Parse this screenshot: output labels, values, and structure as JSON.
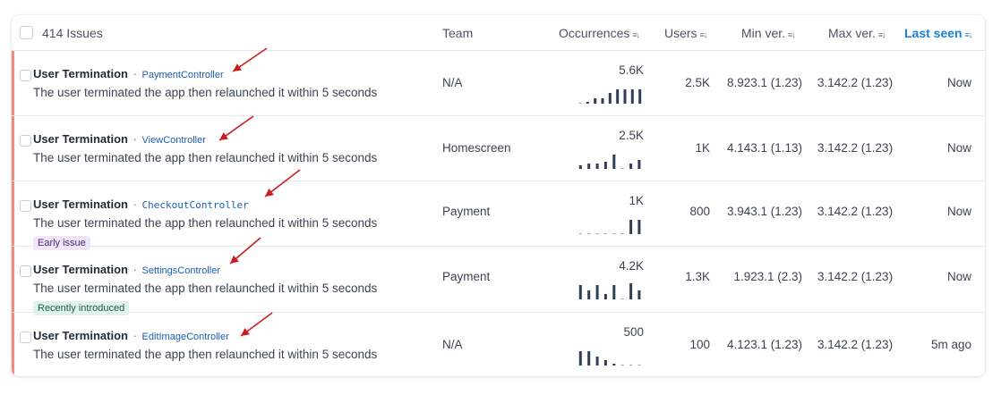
{
  "header": {
    "count_label": "414 Issues",
    "team": "Team",
    "occurrences": "Occurrences",
    "users": "Users",
    "min_ver": "Min ver.",
    "max_ver": "Max ver.",
    "last_seen": "Last seen",
    "sort_icon": "≡↓"
  },
  "colors": {
    "accent": "#1a7fd6",
    "stripe": "#ef8a78",
    "bar": "#2f3e55",
    "arrow": "#c81e1e"
  },
  "rows": [
    {
      "name": "User Termination",
      "sep": "·",
      "controller": "PaymentController",
      "desc": "The user terminated the app then relaunched it within 5 seconds",
      "tag": "",
      "team": "N/A",
      "occurrences": "5.6K",
      "users": "2.5K",
      "min_ver": "8.923.1 (1.23)",
      "max_ver": "3.142.2 (1.23)",
      "last_seen": "Now",
      "spark": [
        0,
        0.1,
        0.3,
        0.3,
        0.6,
        0.8,
        0.8,
        0.8,
        0.8
      ]
    },
    {
      "name": "User Termination",
      "sep": "·",
      "controller": "ViewController",
      "desc": "The user terminated the app then relaunched it within 5 seconds",
      "tag": "",
      "team": "Homescreen",
      "occurrences": "2.5K",
      "users": "1K",
      "min_ver": "4.143.1 (1.13)",
      "max_ver": "3.142.2 (1.23)",
      "last_seen": "Now",
      "spark": [
        0.2,
        0.3,
        0.3,
        0.4,
        0.8,
        0,
        0.3,
        0.5
      ]
    },
    {
      "name": "User Termination",
      "sep": "·",
      "controller": "CheckoutController",
      "desc": "The user terminated the app then relaunched it within 5 seconds",
      "tag": "Early issue",
      "tag_style": "purple",
      "team": "Payment",
      "occurrences": "1K",
      "users": "800",
      "min_ver": "3.943.1 (1.23)",
      "max_ver": "3.142.2 (1.23)",
      "last_seen": "Now",
      "spark": [
        0,
        0,
        0,
        0,
        0,
        0,
        0.8,
        0.8
      ]
    },
    {
      "name": "User Termination",
      "sep": "·",
      "controller": "SettingsController",
      "desc": "The user terminated the app then relaunched it within 5 seconds",
      "tag": "Recently introduced",
      "tag_style": "green",
      "team": "Payment",
      "occurrences": "4.2K",
      "users": "1.3K",
      "min_ver": "1.923.1 (2.3)",
      "max_ver": "3.142.2 (1.23)",
      "last_seen": "Now",
      "spark": [
        0.8,
        0.5,
        0.8,
        0.3,
        0.8,
        0,
        0.9,
        0.5
      ]
    },
    {
      "name": "User Termination",
      "sep": "·",
      "controller": "EditImageController",
      "desc": "The user terminated the app then relaunched it within 5 seconds",
      "tag": "",
      "team": "N/A",
      "occurrences": "500",
      "users": "100",
      "min_ver": "4.123.1 (1.23)",
      "max_ver": "3.142.2 (1.23)",
      "last_seen": "5m ago",
      "spark": [
        0.8,
        0.8,
        0.5,
        0.3,
        0.1,
        0,
        0,
        0
      ]
    }
  ]
}
